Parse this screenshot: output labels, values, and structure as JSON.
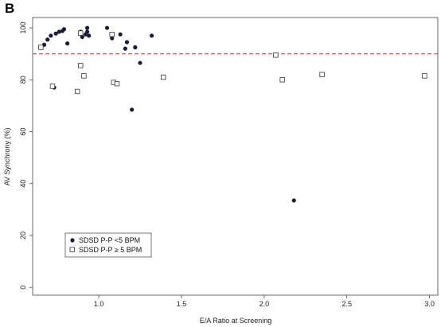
{
  "panel_label": "B",
  "chart_data": {
    "type": "scatter",
    "title": "",
    "xlabel": "E/A Ratio at Screening",
    "ylabel": "AV Synchrony (%)",
    "xlim": [
      0.6,
      3.05
    ],
    "ylim": [
      -3,
      104
    ],
    "xticks": [
      1.0,
      1.5,
      2.0,
      2.5,
      3.0
    ],
    "xtick_labels": [
      "1.0",
      "1.5",
      "2.0",
      "2.5",
      "3.0"
    ],
    "yticks": [
      0,
      20,
      40,
      60,
      80,
      100
    ],
    "ytick_labels": [
      "0",
      "20",
      "40",
      "60",
      "80",
      "100"
    ],
    "grid": false,
    "reference_line": {
      "y": 90,
      "style": "dashed",
      "color": "#c0504d"
    },
    "legend": {
      "placement": "bottom-left"
    },
    "series": [
      {
        "name": "SDSD P-P <5 BPM",
        "marker": "filled-circle",
        "color": "#1b1b3a",
        "points": [
          [
            0.67,
            93.5
          ],
          [
            0.69,
            95.5
          ],
          [
            0.71,
            97.0
          ],
          [
            0.74,
            97.8
          ],
          [
            0.76,
            98.5
          ],
          [
            0.78,
            98.8
          ],
          [
            0.79,
            99.5
          ],
          [
            0.81,
            94.0
          ],
          [
            0.89,
            98.5
          ],
          [
            0.9,
            96.5
          ],
          [
            0.92,
            97.5
          ],
          [
            0.93,
            100.0
          ],
          [
            0.93,
            98.5
          ],
          [
            0.94,
            97.0
          ],
          [
            1.05,
            100.0
          ],
          [
            1.08,
            96.0
          ],
          [
            1.13,
            97.5
          ],
          [
            1.16,
            92.0
          ],
          [
            1.17,
            94.5
          ],
          [
            1.22,
            92.5
          ],
          [
            1.25,
            86.5
          ],
          [
            1.32,
            97.0
          ],
          [
            0.73,
            77.0
          ],
          [
            1.2,
            68.5
          ],
          [
            2.18,
            33.5
          ]
        ]
      },
      {
        "name": "SDSD P-P ≥ 5 BPM",
        "marker": "open-square",
        "color": "#333333",
        "points": [
          [
            0.65,
            92.5
          ],
          [
            0.72,
            77.5
          ],
          [
            0.87,
            75.5
          ],
          [
            0.89,
            98.0
          ],
          [
            0.89,
            85.5
          ],
          [
            0.91,
            81.5
          ],
          [
            1.08,
            97.5
          ],
          [
            1.09,
            79.0
          ],
          [
            1.11,
            78.5
          ],
          [
            1.39,
            81.0
          ],
          [
            2.07,
            89.5
          ],
          [
            2.11,
            80.0
          ],
          [
            2.35,
            82.0
          ],
          [
            2.97,
            81.5
          ]
        ]
      }
    ]
  }
}
